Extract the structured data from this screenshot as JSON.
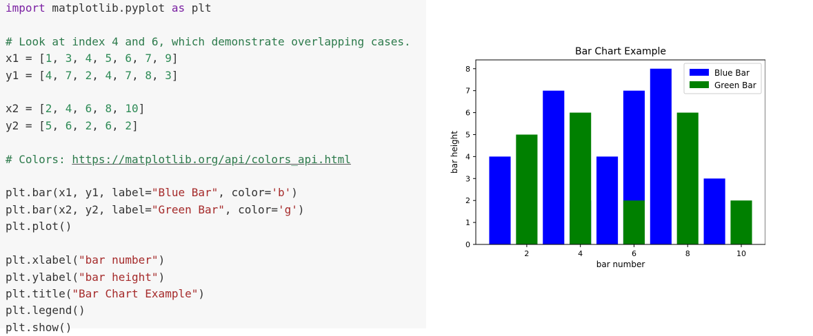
{
  "code": {
    "line1": {
      "kw": "import",
      "rest": " matplotlib.pyplot ",
      "kw2": "as",
      "rest2": " plt"
    },
    "comment1": "# Look at index 4 and 6, which demonstrate overlapping cases.",
    "x1": {
      "pre": "x1 = [",
      "nums": [
        "1",
        "3",
        "4",
        "5",
        "6",
        "7",
        "9"
      ],
      "post": "]"
    },
    "y1": {
      "pre": "y1 = [",
      "nums": [
        "4",
        "7",
        "2",
        "4",
        "7",
        "8",
        "3"
      ],
      "post": "]"
    },
    "x2": {
      "pre": "x2 = [",
      "nums": [
        "2",
        "4",
        "6",
        "8",
        "10"
      ],
      "post": "]"
    },
    "y2": {
      "pre": "y2 = [",
      "nums": [
        "5",
        "6",
        "2",
        "6",
        "2"
      ],
      "post": "]"
    },
    "comment2_prefix": "# Colors: ",
    "comment2_link": "https://matplotlib.org/api/colors_api.html",
    "bar1": {
      "a": "plt.bar(x1, y1, label=",
      "s1": "\"Blue Bar\"",
      "b": ", color=",
      "s2": "'b'",
      "c": ")"
    },
    "bar2": {
      "a": "plt.bar(x2, y2, label=",
      "s1": "\"Green Bar\"",
      "b": ", color=",
      "s2": "'g'",
      "c": ")"
    },
    "plot": "plt.plot()",
    "xlabel": {
      "a": "plt.xlabel(",
      "s": "\"bar number\"",
      "c": ")"
    },
    "ylabel": {
      "a": "plt.ylabel(",
      "s": "\"bar height\"",
      "c": ")"
    },
    "title": {
      "a": "plt.title(",
      "s": "\"Bar Chart Example\"",
      "c": ")"
    },
    "legend": "plt.legend()",
    "show": "plt.show()"
  },
  "chart_data": {
    "type": "bar",
    "title": "Bar Chart Example",
    "xlabel": "bar number",
    "ylabel": "bar height",
    "xlim": [
      0.1,
      10.9
    ],
    "ylim": [
      0,
      8.4
    ],
    "xticks": [
      2,
      4,
      6,
      8,
      10
    ],
    "yticks": [
      0,
      1,
      2,
      3,
      4,
      5,
      6,
      7,
      8
    ],
    "bar_width": 0.8,
    "grid": false,
    "legend_position": "top-right",
    "series": [
      {
        "name": "Blue Bar",
        "color": "#0000ff",
        "x": [
          1,
          3,
          4,
          5,
          6,
          7,
          9
        ],
        "values": [
          4,
          7,
          2,
          4,
          7,
          8,
          3
        ]
      },
      {
        "name": "Green Bar",
        "color": "#008000",
        "x": [
          2,
          4,
          6,
          8,
          10
        ],
        "values": [
          5,
          6,
          2,
          6,
          2
        ]
      }
    ]
  }
}
